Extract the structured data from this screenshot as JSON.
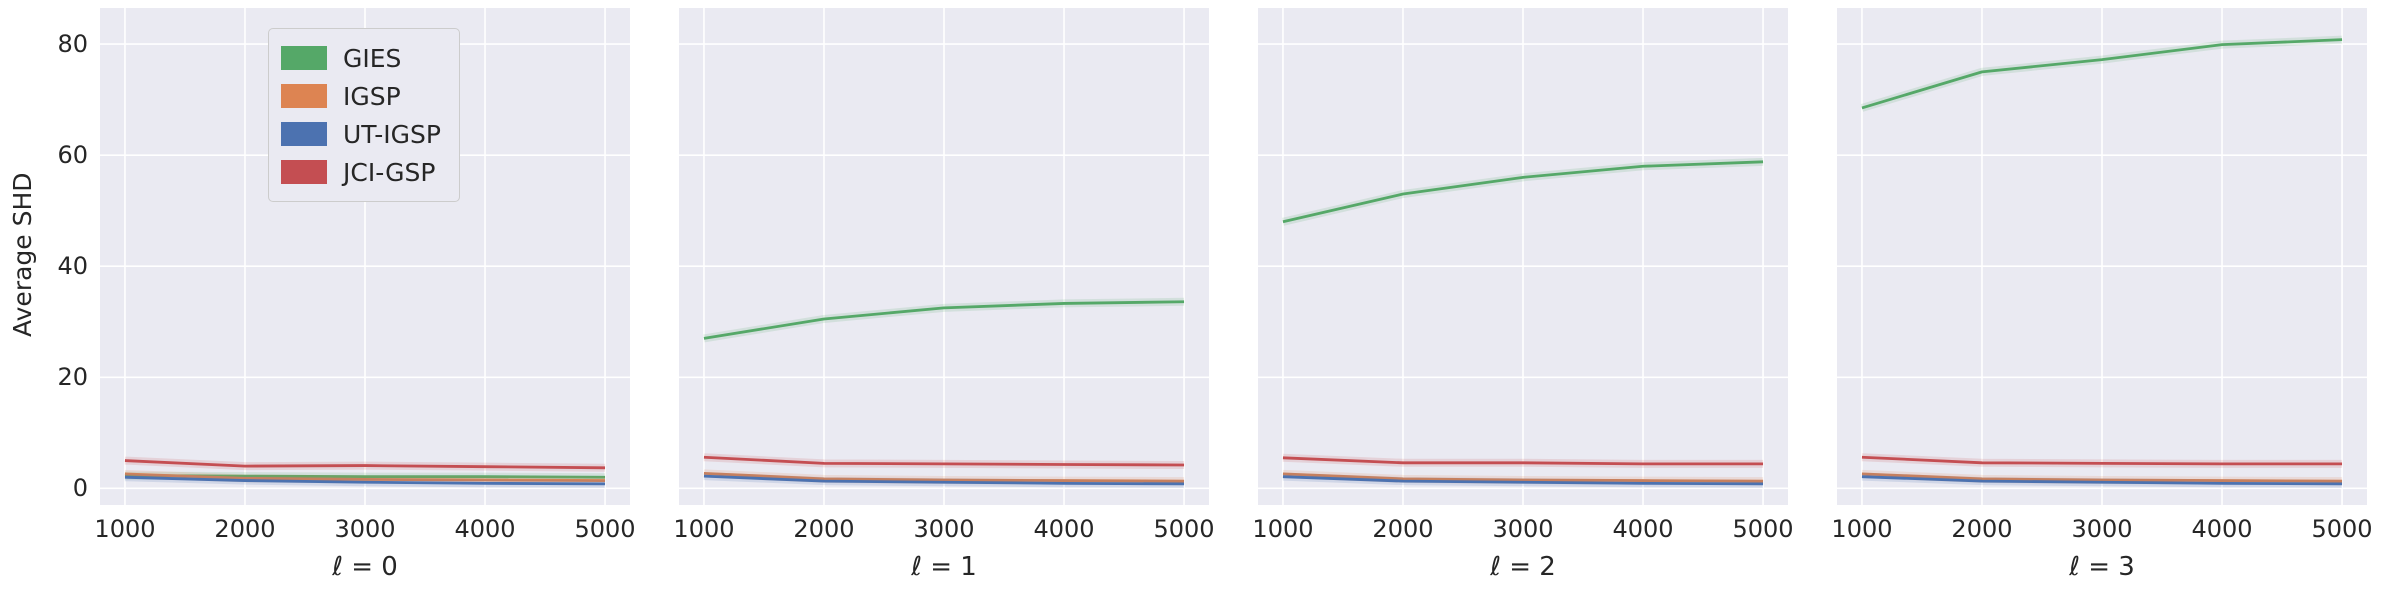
{
  "figure": {
    "ylabel": "Average SHD",
    "colors": {
      "figure_background": "#ffffff",
      "axes_background": "#eaeaf2",
      "grid": "#ffffff",
      "text": "#262626"
    }
  },
  "legend": {
    "position": "upper left of first subplot",
    "items": [
      {
        "label": "GIES",
        "color": "#55a868"
      },
      {
        "label": "IGSP",
        "color": "#dd8452"
      },
      {
        "label": "UT-IGSP",
        "color": "#4c72b0"
      },
      {
        "label": "JCI-GSP",
        "color": "#c44e52"
      }
    ]
  },
  "axis": {
    "yticks": [
      "0",
      "20",
      "40",
      "60",
      "80"
    ],
    "xticks": [
      "1000",
      "2000",
      "3000",
      "4000",
      "5000"
    ]
  },
  "chart_data": [
    {
      "type": "line",
      "xlabel": "ℓ = 0",
      "ylabel": "Average SHD",
      "x": [
        1000,
        2000,
        3000,
        4000,
        5000
      ],
      "xlim": [
        792,
        5208
      ],
      "ylim": [
        -3,
        86.5
      ],
      "yticks": [
        0,
        20,
        40,
        60,
        80
      ],
      "xticks": [
        1000,
        2000,
        3000,
        4000,
        5000
      ],
      "grid": true,
      "series": [
        {
          "name": "GIES",
          "color": "#55a868",
          "values": [
            2.3,
            2.2,
            2.1,
            2.1,
            2.0
          ]
        },
        {
          "name": "IGSP",
          "color": "#dd8452",
          "values": [
            2.6,
            1.8,
            1.6,
            1.5,
            1.4
          ]
        },
        {
          "name": "UT-IGSP",
          "color": "#4c72b0",
          "values": [
            2.0,
            1.4,
            1.1,
            0.9,
            0.8
          ]
        },
        {
          "name": "JCI-GSP",
          "color": "#c44e52",
          "values": [
            5.0,
            4.0,
            4.1,
            3.9,
            3.7
          ]
        }
      ]
    },
    {
      "type": "line",
      "xlabel": "ℓ = 1",
      "ylabel": "Average SHD",
      "x": [
        1000,
        2000,
        3000,
        4000,
        5000
      ],
      "xlim": [
        792,
        5208
      ],
      "ylim": [
        -3,
        86.5
      ],
      "yticks": [
        0,
        20,
        40,
        60,
        80
      ],
      "xticks": [
        1000,
        2000,
        3000,
        4000,
        5000
      ],
      "grid": true,
      "series": [
        {
          "name": "GIES",
          "color": "#55a868",
          "values": [
            27.0,
            30.5,
            32.5,
            33.3,
            33.6
          ]
        },
        {
          "name": "IGSP",
          "color": "#dd8452",
          "values": [
            2.7,
            1.7,
            1.5,
            1.4,
            1.3
          ]
        },
        {
          "name": "UT-IGSP",
          "color": "#4c72b0",
          "values": [
            2.2,
            1.3,
            1.1,
            0.9,
            0.8
          ]
        },
        {
          "name": "JCI-GSP",
          "color": "#c44e52",
          "values": [
            5.6,
            4.5,
            4.4,
            4.3,
            4.2
          ]
        }
      ]
    },
    {
      "type": "line",
      "xlabel": "ℓ = 2",
      "ylabel": "Average SHD",
      "x": [
        1000,
        2000,
        3000,
        4000,
        5000
      ],
      "xlim": [
        792,
        5208
      ],
      "ylim": [
        -3,
        86.5
      ],
      "yticks": [
        0,
        20,
        40,
        60,
        80
      ],
      "xticks": [
        1000,
        2000,
        3000,
        4000,
        5000
      ],
      "grid": true,
      "series": [
        {
          "name": "GIES",
          "color": "#55a868",
          "values": [
            48.0,
            53.0,
            56.0,
            58.0,
            58.8
          ]
        },
        {
          "name": "IGSP",
          "color": "#dd8452",
          "values": [
            2.6,
            1.7,
            1.5,
            1.4,
            1.3
          ]
        },
        {
          "name": "UT-IGSP",
          "color": "#4c72b0",
          "values": [
            2.1,
            1.3,
            1.1,
            0.9,
            0.8
          ]
        },
        {
          "name": "JCI-GSP",
          "color": "#c44e52",
          "values": [
            5.5,
            4.6,
            4.6,
            4.4,
            4.4
          ]
        }
      ]
    },
    {
      "type": "line",
      "xlabel": "ℓ = 3",
      "ylabel": "Average SHD",
      "x": [
        1000,
        2000,
        3000,
        4000,
        5000
      ],
      "xlim": [
        792,
        5208
      ],
      "ylim": [
        -3,
        86.5
      ],
      "yticks": [
        0,
        20,
        40,
        60,
        80
      ],
      "xticks": [
        1000,
        2000,
        3000,
        4000,
        5000
      ],
      "grid": true,
      "series": [
        {
          "name": "GIES",
          "color": "#55a868",
          "values": [
            68.5,
            75.0,
            77.2,
            79.9,
            80.8
          ]
        },
        {
          "name": "IGSP",
          "color": "#dd8452",
          "values": [
            2.6,
            1.7,
            1.5,
            1.4,
            1.3
          ]
        },
        {
          "name": "UT-IGSP",
          "color": "#4c72b0",
          "values": [
            2.1,
            1.3,
            1.1,
            0.9,
            0.8
          ]
        },
        {
          "name": "JCI-GSP",
          "color": "#c44e52",
          "values": [
            5.6,
            4.6,
            4.5,
            4.4,
            4.4
          ]
        }
      ]
    }
  ]
}
